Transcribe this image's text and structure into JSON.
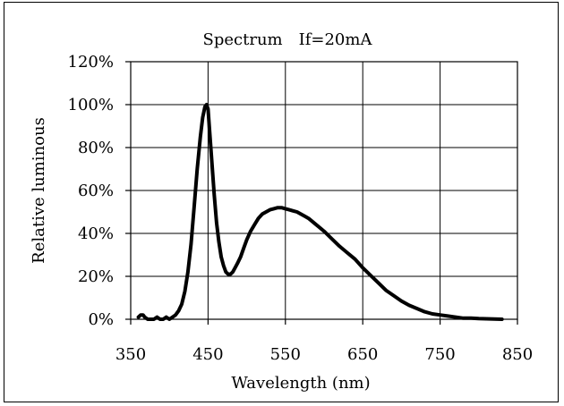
{
  "chart_data": {
    "type": "line",
    "title": "Spectrum　If=20mA",
    "xlabel": "Wavelength (nm)",
    "ylabel": "Relative luminous",
    "xlim": [
      350,
      850
    ],
    "ylim": [
      0,
      120
    ],
    "x_ticks": [
      350,
      450,
      550,
      650,
      750,
      850
    ],
    "y_ticks": [
      0,
      20,
      40,
      60,
      80,
      100,
      120
    ],
    "x_tick_labels": [
      "350",
      "450",
      "550",
      "650",
      "750",
      "850"
    ],
    "y_tick_labels": [
      "0%",
      "20%",
      "40%",
      "60%",
      "80%",
      "100%",
      "120%"
    ],
    "grid": true,
    "line_color": "#000000",
    "series": [
      {
        "x": [
          360,
          363,
          366,
          368,
          372,
          376,
          380,
          384,
          388,
          392,
          396,
          400,
          404,
          408,
          412,
          416,
          420,
          424,
          428,
          432,
          436,
          440,
          443,
          446,
          448,
          450,
          452,
          455,
          458,
          461,
          464,
          467,
          470,
          473,
          476,
          479,
          482,
          485,
          488,
          492,
          496,
          500,
          505,
          510,
          515,
          520,
          525,
          530,
          535,
          540,
          545,
          550,
          555,
          560,
          565,
          570,
          575,
          580,
          590,
          600,
          610,
          620,
          630,
          640,
          650,
          660,
          670,
          680,
          690,
          700,
          710,
          720,
          730,
          740,
          750,
          760,
          770,
          780,
          790,
          800,
          810,
          820,
          830
        ],
        "y": [
          1,
          2,
          2,
          1,
          0,
          0,
          0,
          1,
          0,
          0,
          1,
          0,
          1,
          2,
          4,
          7,
          13,
          22,
          35,
          52,
          70,
          85,
          94,
          99,
          100,
          98,
          88,
          73,
          58,
          45,
          36,
          29,
          25,
          22,
          21,
          21,
          22,
          24,
          26,
          29,
          33,
          37,
          41,
          44,
          47,
          49,
          50,
          51,
          51.5,
          52,
          52,
          51.5,
          51,
          50.5,
          50,
          49,
          48,
          47,
          44,
          41,
          37.5,
          34,
          31,
          28,
          24,
          20.5,
          17,
          13.5,
          11,
          8.5,
          6.5,
          5,
          3.5,
          2.5,
          2,
          1.5,
          1,
          0.5,
          0.5,
          0.3,
          0.2,
          0.1,
          0
        ]
      }
    ]
  }
}
